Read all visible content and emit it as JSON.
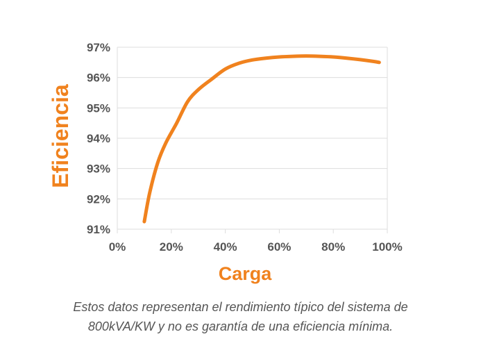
{
  "chart_data": {
    "type": "line",
    "title": "",
    "xlabel": "Carga",
    "ylabel": "Eficiencia",
    "xlim": [
      0,
      100
    ],
    "ylim": [
      91,
      97
    ],
    "x_ticks": [
      "0%",
      "20%",
      "40%",
      "60%",
      "80%",
      "100%"
    ],
    "x_tick_values": [
      0,
      20,
      40,
      60,
      80,
      100
    ],
    "y_ticks": [
      "97%",
      "96%",
      "95%",
      "94%",
      "93%",
      "92%",
      "91%"
    ],
    "y_tick_values": [
      97,
      96,
      95,
      94,
      93,
      92,
      91
    ],
    "grid": "horizontal",
    "series": [
      {
        "color": "#f0821e",
        "x": [
          10,
          12,
          15,
          18,
          22,
          26,
          30,
          35,
          40,
          45,
          50,
          55,
          60,
          65,
          70,
          75,
          80,
          85,
          90,
          95,
          97
        ],
        "y": [
          91.25,
          92.2,
          93.2,
          93.85,
          94.5,
          95.2,
          95.6,
          95.95,
          96.28,
          96.47,
          96.58,
          96.64,
          96.68,
          96.7,
          96.71,
          96.7,
          96.68,
          96.64,
          96.59,
          96.53,
          96.5
        ]
      }
    ]
  },
  "caption": {
    "line1": "Estos datos representan el rendimiento típico del sistema de",
    "line2": "800kVA/KW y no es garantía de una eficiencia mínima."
  },
  "colors": {
    "accent": "#f0821e",
    "tick_text": "#555555",
    "grid": "#dddddd"
  }
}
